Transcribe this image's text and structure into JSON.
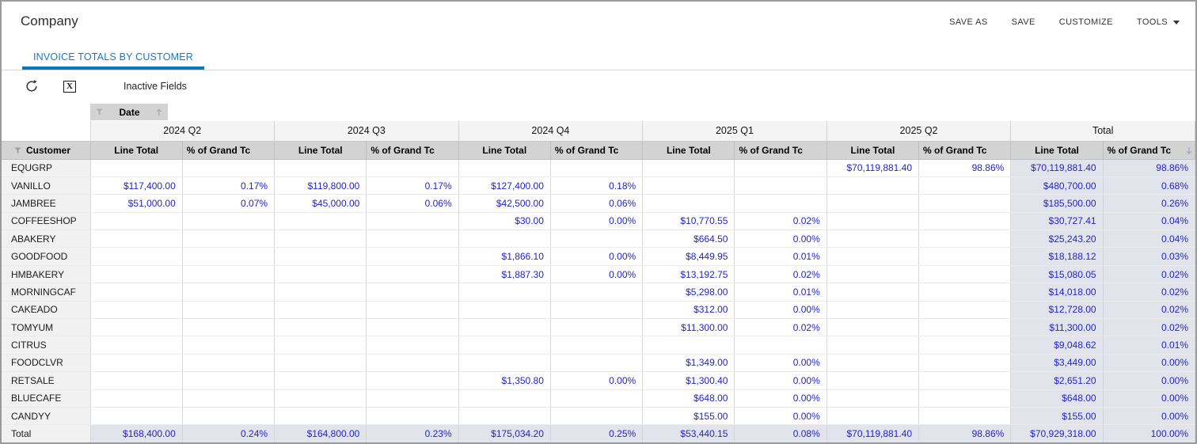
{
  "app": {
    "title": "Company",
    "actions": {
      "save_as": "SAVE AS",
      "save": "SAVE",
      "customize": "CUSTOMIZE",
      "tools": "TOOLS"
    },
    "tab": "INVOICE TOTALS BY CUSTOMER",
    "toolbar": {
      "inactive_fields": "Inactive Fields"
    },
    "icons": [
      "refresh-icon",
      "export-excel-icon",
      "filter-icon",
      "sort-asc-icon",
      "sort-desc-icon",
      "caret-down-icon"
    ]
  },
  "pivot": {
    "column_field": "Date",
    "row_field": "Customer",
    "groups": [
      "2024 Q2",
      "2024 Q3",
      "2024 Q4",
      "2025 Q1",
      "2025 Q2",
      "Total"
    ],
    "value_headers": [
      "Line Total",
      "% of Grand Tc"
    ],
    "rows": [
      {
        "customer": "EQUGRP",
        "cells": [
          "",
          "",
          "",
          "",
          "",
          "",
          "",
          "",
          "$70,119,881.40",
          "98.86%",
          "$70,119,881.40",
          "98.86%"
        ]
      },
      {
        "customer": "VANILLO",
        "cells": [
          "$117,400.00",
          "0.17%",
          "$119,800.00",
          "0.17%",
          "$127,400.00",
          "0.18%",
          "",
          "",
          "",
          "",
          "$480,700.00",
          "0.68%"
        ]
      },
      {
        "customer": "JAMBREE",
        "cells": [
          "$51,000.00",
          "0.07%",
          "$45,000.00",
          "0.06%",
          "$42,500.00",
          "0.06%",
          "",
          "",
          "",
          "",
          "$185,500.00",
          "0.26%"
        ]
      },
      {
        "customer": "COFFEESHOP",
        "cells": [
          "",
          "",
          "",
          "",
          "$30.00",
          "0.00%",
          "$10,770.55",
          "0.02%",
          "",
          "",
          "$30,727.41",
          "0.04%"
        ]
      },
      {
        "customer": "ABAKERY",
        "cells": [
          "",
          "",
          "",
          "",
          "",
          "",
          "$664.50",
          "0.00%",
          "",
          "",
          "$25,243.20",
          "0.04%"
        ]
      },
      {
        "customer": "GOODFOOD",
        "cells": [
          "",
          "",
          "",
          "",
          "$1,866.10",
          "0.00%",
          "$8,449.95",
          "0.01%",
          "",
          "",
          "$18,188.12",
          "0.03%"
        ]
      },
      {
        "customer": "HMBAKERY",
        "cells": [
          "",
          "",
          "",
          "",
          "$1,887.30",
          "0.00%",
          "$13,192.75",
          "0.02%",
          "",
          "",
          "$15,080.05",
          "0.02%"
        ]
      },
      {
        "customer": "MORNINGCAF",
        "cells": [
          "",
          "",
          "",
          "",
          "",
          "",
          "$5,298.00",
          "0.01%",
          "",
          "",
          "$14,018.00",
          "0.02%"
        ]
      },
      {
        "customer": "CAKEADO",
        "cells": [
          "",
          "",
          "",
          "",
          "",
          "",
          "$312.00",
          "0.00%",
          "",
          "",
          "$12,728.00",
          "0.02%"
        ]
      },
      {
        "customer": "TOMYUM",
        "cells": [
          "",
          "",
          "",
          "",
          "",
          "",
          "$11,300.00",
          "0.02%",
          "",
          "",
          "$11,300.00",
          "0.02%"
        ]
      },
      {
        "customer": "CITRUS",
        "cells": [
          "",
          "",
          "",
          "",
          "",
          "",
          "",
          "",
          "",
          "",
          "$9,048.62",
          "0.01%"
        ]
      },
      {
        "customer": "FOODCLVR",
        "cells": [
          "",
          "",
          "",
          "",
          "",
          "",
          "$1,349.00",
          "0.00%",
          "",
          "",
          "$3,449.00",
          "0.00%"
        ]
      },
      {
        "customer": "RETSALE",
        "cells": [
          "",
          "",
          "",
          "",
          "$1,350.80",
          "0.00%",
          "$1,300.40",
          "0.00%",
          "",
          "",
          "$2,651.20",
          "0.00%"
        ]
      },
      {
        "customer": "BLUECAFE",
        "cells": [
          "",
          "",
          "",
          "",
          "",
          "",
          "$648.00",
          "0.00%",
          "",
          "",
          "$648.00",
          "0.00%"
        ]
      },
      {
        "customer": "CANDYY",
        "cells": [
          "",
          "",
          "",
          "",
          "",
          "",
          "$155.00",
          "0.00%",
          "",
          "",
          "$155.00",
          "0.00%"
        ]
      }
    ],
    "total_row": {
      "customer": "Total",
      "cells": [
        "$168,400.00",
        "0.24%",
        "$164,800.00",
        "0.23%",
        "$175,034.20",
        "0.25%",
        "$53,440.15",
        "0.08%",
        "$70,119,881.40",
        "98.86%",
        "$70,929,318.00",
        "100.00%"
      ]
    }
  },
  "colors": {
    "accent": "#1878c8",
    "accent_underline": "#0f75bd",
    "value_text": "#2323cb",
    "header_bg": "#d3d3d3",
    "group_row_bg": "#f4f4f4",
    "rowhead_bg": "#f1f1f1",
    "total_bg": "#e2e4ec"
  }
}
